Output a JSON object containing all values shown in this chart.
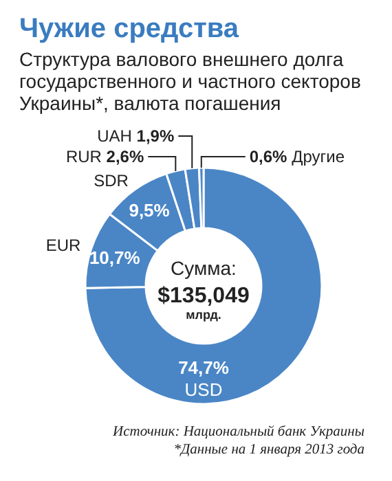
{
  "chart_data": {
    "type": "donut",
    "title": "Чужие средства",
    "subtitle": "Структура валового внешнего долга государственного и частного секторов Украины*, валюта погашения",
    "categories": [
      "USD",
      "EUR",
      "SDR",
      "RUR",
      "UAH",
      "Другие"
    ],
    "values": [
      74.7,
      10.7,
      9.5,
      2.6,
      1.9,
      0.6
    ],
    "colors": [
      "#4a86c6",
      "#4a86c6",
      "#4a86c6",
      "#4a86c6",
      "#4a86c6",
      "#4a86c6"
    ],
    "value_labels": [
      "74,7%",
      "10,7%",
      "9,5%",
      "2,6%",
      "1,9%",
      "0,6%"
    ],
    "annotations": [
      "Сумма:",
      "$135,049",
      "млрд.",
      "Источник: Национальный банк Украины",
      "*Данные на 1 января 2013 года"
    ]
  }
}
